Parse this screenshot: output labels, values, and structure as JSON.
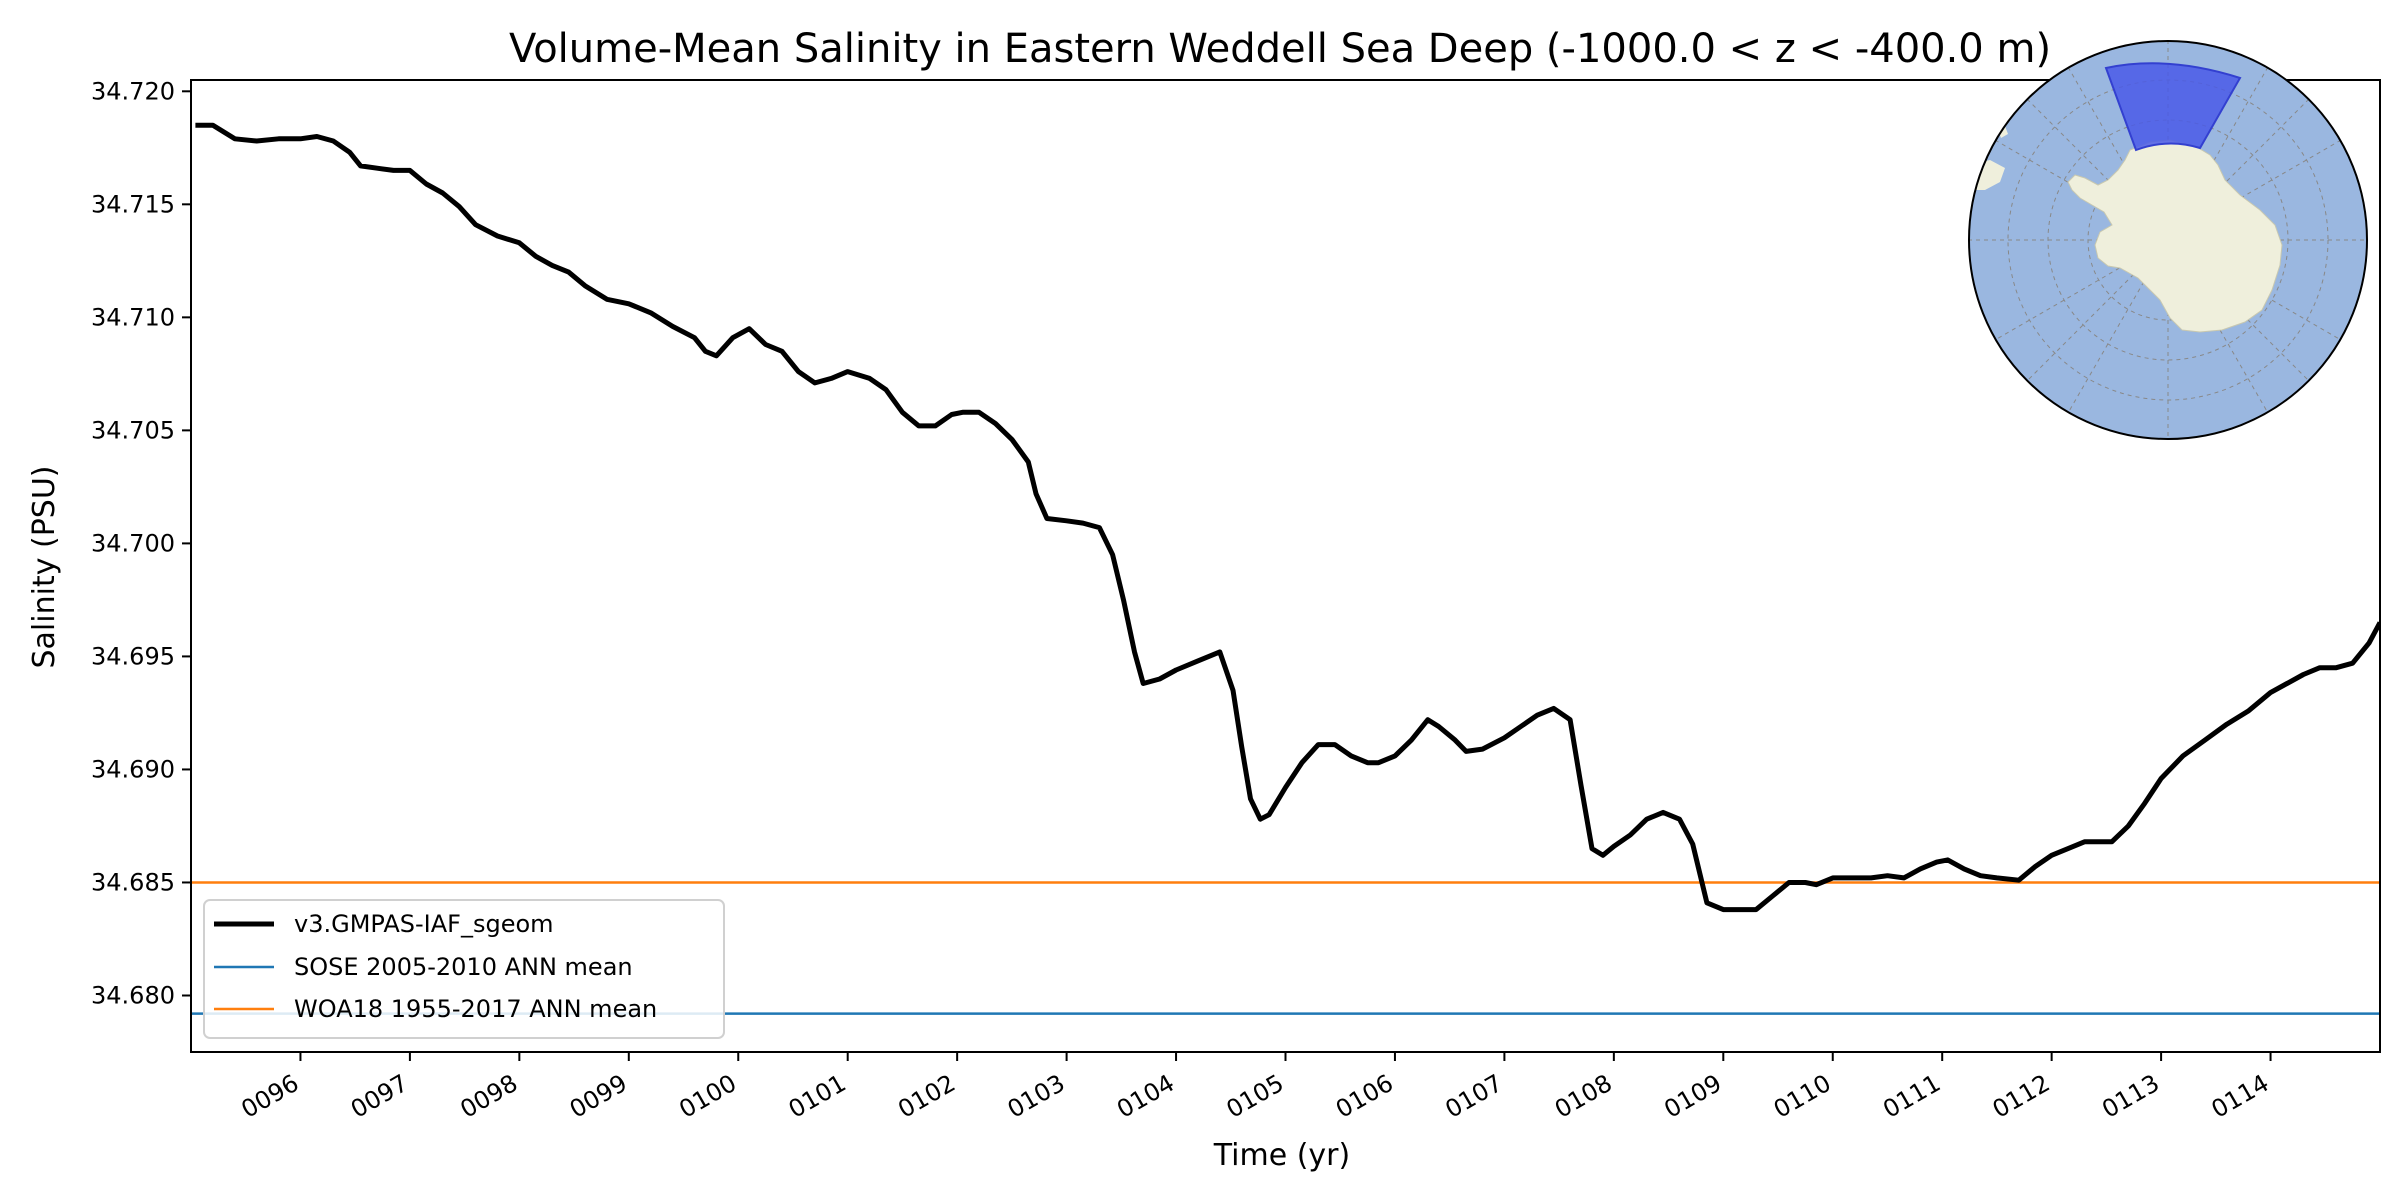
{
  "chart_data": {
    "type": "line",
    "title": "Volume-Mean Salinity in Eastern Weddell Sea Deep (-1000.0 < z < -400.0 m)",
    "xlabel": "Time (yr)",
    "ylabel": "Salinity (PSU)",
    "xlim": [
      95.0,
      115.0
    ],
    "ylim": [
      34.6775,
      34.7205
    ],
    "xticks": [
      96,
      97,
      98,
      99,
      100,
      101,
      102,
      103,
      104,
      105,
      106,
      107,
      108,
      109,
      110,
      111,
      112,
      113,
      114
    ],
    "xtick_labels": [
      "0096",
      "0097",
      "0098",
      "0099",
      "0100",
      "0101",
      "0102",
      "0103",
      "0104",
      "0105",
      "0106",
      "0107",
      "0108",
      "0109",
      "0110",
      "0111",
      "0112",
      "0113",
      "0114"
    ],
    "yticks": [
      34.68,
      34.685,
      34.69,
      34.695,
      34.7,
      34.705,
      34.71,
      34.715,
      34.72
    ],
    "ytick_labels": [
      "34.680",
      "34.685",
      "34.690",
      "34.695",
      "34.700",
      "34.705",
      "34.710",
      "34.715",
      "34.720"
    ],
    "series": [
      {
        "name": "v3.GMPAS-IAF_sgeom",
        "color": "#000000",
        "x": [
          95.04,
          95.2,
          95.4,
          95.6,
          95.8,
          96.0,
          96.15,
          96.3,
          96.45,
          96.55,
          96.7,
          96.85,
          97.0,
          97.15,
          97.3,
          97.45,
          97.6,
          97.8,
          98.0,
          98.15,
          98.3,
          98.45,
          98.6,
          98.8,
          99.0,
          99.2,
          99.4,
          99.6,
          99.7,
          99.8,
          99.95,
          100.1,
          100.25,
          100.4,
          100.55,
          100.7,
          100.85,
          101.0,
          101.2,
          101.35,
          101.5,
          101.65,
          101.8,
          101.95,
          102.05,
          102.2,
          102.35,
          102.5,
          102.65,
          102.72,
          102.82,
          103.0,
          103.15,
          103.3,
          103.42,
          103.52,
          103.62,
          103.7,
          103.85,
          104.0,
          104.2,
          104.4,
          104.52,
          104.6,
          104.68,
          104.77,
          104.85,
          105.0,
          105.15,
          105.3,
          105.45,
          105.6,
          105.75,
          105.85,
          106.0,
          106.15,
          106.3,
          106.4,
          106.55,
          106.65,
          106.8,
          107.0,
          107.15,
          107.3,
          107.45,
          107.6,
          107.7,
          107.8,
          107.9,
          108.0,
          108.15,
          108.3,
          108.45,
          108.6,
          108.72,
          108.85,
          109.0,
          109.15,
          109.3,
          109.45,
          109.6,
          109.75,
          109.85,
          110.0,
          110.2,
          110.35,
          110.5,
          110.65,
          110.8,
          110.95,
          111.05,
          111.2,
          111.35,
          111.5,
          111.7,
          111.85,
          112.0,
          112.15,
          112.3,
          112.4,
          112.55,
          112.7,
          112.85,
          113.0,
          113.2,
          113.4,
          113.6,
          113.8,
          114.0,
          114.15,
          114.3,
          114.45,
          114.6,
          114.75,
          114.9,
          115.0
        ],
        "y": [
          34.7185,
          34.7185,
          34.7179,
          34.7178,
          34.7179,
          34.7179,
          34.718,
          34.7178,
          34.7173,
          34.7167,
          34.7166,
          34.7165,
          34.7165,
          34.7159,
          34.7155,
          34.7149,
          34.7141,
          34.7136,
          34.7133,
          34.7127,
          34.7123,
          34.712,
          34.7114,
          34.7108,
          34.7106,
          34.7102,
          34.7096,
          34.7091,
          34.7085,
          34.7083,
          34.7091,
          34.7095,
          34.7088,
          34.7085,
          34.7076,
          34.7071,
          34.7073,
          34.7076,
          34.7073,
          34.7068,
          34.7058,
          34.7052,
          34.7052,
          34.7057,
          34.7058,
          34.7058,
          34.7053,
          34.7046,
          34.7036,
          34.7022,
          34.7011,
          34.701,
          34.7009,
          34.7007,
          34.6995,
          34.6975,
          34.6952,
          34.6938,
          34.694,
          34.6944,
          34.6948,
          34.6952,
          34.6935,
          34.691,
          34.6887,
          34.6878,
          34.688,
          34.6892,
          34.6903,
          34.6911,
          34.6911,
          34.6906,
          34.6903,
          34.6903,
          34.6906,
          34.6913,
          34.6922,
          34.6919,
          34.6913,
          34.6908,
          34.6909,
          34.6914,
          34.6919,
          34.6924,
          34.6927,
          34.6922,
          34.6893,
          34.6865,
          34.6862,
          34.6866,
          34.6871,
          34.6878,
          34.6881,
          34.6878,
          34.6867,
          34.6841,
          34.6838,
          34.6838,
          34.6838,
          34.6844,
          34.685,
          34.685,
          34.6849,
          34.6852,
          34.6852,
          34.6852,
          34.6853,
          34.6852,
          34.6856,
          34.6859,
          34.686,
          34.6856,
          34.6853,
          34.6852,
          34.6851,
          34.6857,
          34.6862,
          34.6865,
          34.6868,
          34.6868,
          34.6868,
          34.6875,
          34.6885,
          34.6896,
          34.6906,
          34.6913,
          34.692,
          34.6926,
          34.6934,
          34.6938,
          34.6942,
          34.6945,
          34.6945,
          34.6947,
          34.6956,
          34.6965
        ]
      },
      {
        "name": "SOSE 2005-2010 ANN mean",
        "color": "#1f77b4",
        "constant": 34.6792
      },
      {
        "name": "WOA18 1955-2017 ANN mean",
        "color": "#ff7f0e",
        "constant": 34.685
      }
    ],
    "legend": {
      "placement": "lower-left",
      "entries": [
        "v3.GMPAS-IAF_sgeom",
        "SOSE 2005-2010 ANN mean",
        "WOA18 1955-2017 ANN mean"
      ]
    },
    "grid": false,
    "inset_map": {
      "description": "South polar stereographic map",
      "region_highlight_color": "#4a5be8",
      "ocean_color": "#9ab7e0",
      "land_color": "#efefdc"
    }
  }
}
